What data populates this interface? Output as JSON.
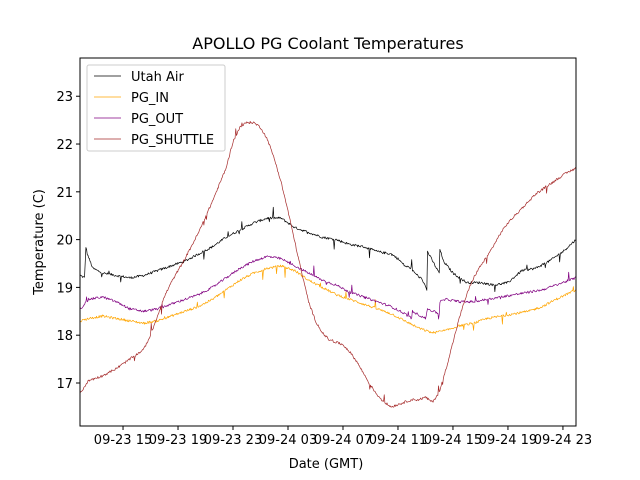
{
  "chart_data": {
    "type": "line",
    "title": "APOLLO PG Coolant Temperatures",
    "xlabel": "Date (GMT)",
    "ylabel": "Temperature (C)",
    "x_unit": "hours since 09-23 00:00 GMT",
    "xlim": [
      11.87,
      47.95
    ],
    "ylim": [
      16.1,
      23.8
    ],
    "grid": false,
    "legend_position": "top-left",
    "xticks": [
      {
        "value": 15,
        "label": "09-23 15"
      },
      {
        "value": 19,
        "label": "09-23 19"
      },
      {
        "value": 23,
        "label": "09-23 23"
      },
      {
        "value": 27,
        "label": "09-24 03"
      },
      {
        "value": 31,
        "label": "09-24 07"
      },
      {
        "value": 35,
        "label": "09-24 11"
      },
      {
        "value": 39,
        "label": "09-24 15"
      },
      {
        "value": 43,
        "label": "09-24 19"
      },
      {
        "value": 47,
        "label": "09-24 23"
      }
    ],
    "yticks": [
      {
        "value": 17,
        "label": "17"
      },
      {
        "value": 18,
        "label": "18"
      },
      {
        "value": 19,
        "label": "19"
      },
      {
        "value": 20,
        "label": "20"
      },
      {
        "value": 21,
        "label": "21"
      },
      {
        "value": 22,
        "label": "22"
      },
      {
        "value": 23,
        "label": "23"
      }
    ],
    "series": [
      {
        "name": "Utah Air",
        "color": "#000000",
        "x": [
          11.9,
          12.2,
          12.3,
          12.4,
          12.8,
          13.5,
          14.5,
          15.5,
          16.5,
          17.5,
          18.5,
          19.5,
          20.5,
          21.5,
          22.5,
          23.5,
          24.5,
          25.5,
          26.5,
          27.5,
          28.5,
          29.5,
          30.5,
          31.5,
          32.5,
          33.5,
          34.5,
          35.0,
          35.5,
          36.0,
          36.05,
          36.8,
          37.1,
          37.15,
          37.8,
          38.0,
          38.05,
          38.3,
          39.0,
          40.0,
          41.0,
          42.0,
          43.0,
          44.0,
          45.0,
          46.0,
          47.0,
          47.95
        ],
        "values": [
          19.25,
          19.2,
          19.85,
          19.7,
          19.4,
          19.3,
          19.25,
          19.2,
          19.25,
          19.35,
          19.45,
          19.55,
          19.7,
          19.85,
          20.05,
          20.2,
          20.35,
          20.45,
          20.45,
          20.25,
          20.15,
          20.05,
          20.0,
          19.9,
          19.85,
          19.75,
          19.7,
          19.6,
          19.45,
          19.4,
          19.35,
          19.15,
          18.95,
          19.75,
          19.4,
          19.3,
          19.8,
          19.55,
          19.3,
          19.1,
          19.1,
          19.05,
          19.1,
          19.35,
          19.4,
          19.55,
          19.75,
          20.0
        ]
      },
      {
        "name": "PG_IN",
        "color": "#FFA500",
        "x": [
          11.9,
          12.5,
          13.5,
          14.5,
          15.5,
          16.5,
          17.5,
          18.5,
          19.5,
          20.5,
          21.5,
          22.5,
          23.5,
          24.5,
          25.5,
          26.5,
          27.5,
          28.5,
          29.5,
          30.5,
          31.5,
          32.5,
          33.5,
          34.5,
          35.5,
          36.5,
          37.5,
          38.5,
          39.5,
          40.5,
          41.5,
          42.5,
          43.5,
          44.5,
          45.5,
          46.5,
          47.95
        ],
        "values": [
          18.3,
          18.35,
          18.4,
          18.35,
          18.3,
          18.25,
          18.3,
          18.4,
          18.5,
          18.6,
          18.75,
          18.95,
          19.15,
          19.3,
          19.4,
          19.45,
          19.35,
          19.15,
          19.0,
          18.85,
          18.75,
          18.65,
          18.55,
          18.45,
          18.3,
          18.15,
          18.05,
          18.1,
          18.2,
          18.25,
          18.35,
          18.4,
          18.45,
          18.5,
          18.6,
          18.75,
          18.95
        ]
      },
      {
        "name": "PG_OUT",
        "color": "#800080",
        "x": [
          11.9,
          12.5,
          13.5,
          14.5,
          15.5,
          16.5,
          17.5,
          18.5,
          19.5,
          20.5,
          21.5,
          22.5,
          23.5,
          24.5,
          25.5,
          26.5,
          27.5,
          28.5,
          29.5,
          30.5,
          31.5,
          32.5,
          33.5,
          34.5,
          35.5,
          36.0,
          36.05,
          37.0,
          37.15,
          38.0,
          38.05,
          38.5,
          39.5,
          40.5,
          41.5,
          42.5,
          43.5,
          44.5,
          45.5,
          46.5,
          47.95
        ],
        "values": [
          18.55,
          18.75,
          18.8,
          18.7,
          18.55,
          18.5,
          18.55,
          18.65,
          18.75,
          18.85,
          19.0,
          19.2,
          19.4,
          19.55,
          19.65,
          19.6,
          19.45,
          19.3,
          19.15,
          19.05,
          18.9,
          18.8,
          18.7,
          18.6,
          18.45,
          18.35,
          18.5,
          18.35,
          18.55,
          18.45,
          18.7,
          18.75,
          18.7,
          18.7,
          18.75,
          18.8,
          18.85,
          18.9,
          18.95,
          19.05,
          19.2
        ]
      },
      {
        "name": "PG_SHUTTLE",
        "color": "#A52A2A",
        "x": [
          11.9,
          12.5,
          13.5,
          14.5,
          15.5,
          16.5,
          17.0,
          17.5,
          18.0,
          18.5,
          19.5,
          20.5,
          21.5,
          22.5,
          23.0,
          23.5,
          24.0,
          24.5,
          25.0,
          25.5,
          26.0,
          26.5,
          27.0,
          27.5,
          28.0,
          28.5,
          29.0,
          29.5,
          30.0,
          30.5,
          31.0,
          31.5,
          32.0,
          32.5,
          33.0,
          33.5,
          34.0,
          34.5,
          35.0,
          35.5,
          36.0,
          36.5,
          37.0,
          37.5,
          38.0,
          38.5,
          39.0,
          39.5,
          40.0,
          40.5,
          41.0,
          41.5,
          42.0,
          42.5,
          43.0,
          44.0,
          45.0,
          46.0,
          47.0,
          47.95
        ],
        "values": [
          16.8,
          17.05,
          17.15,
          17.3,
          17.5,
          17.7,
          18.0,
          18.4,
          18.8,
          19.1,
          19.6,
          20.15,
          20.8,
          21.5,
          22.05,
          22.35,
          22.45,
          22.45,
          22.35,
          22.1,
          21.7,
          21.2,
          20.6,
          19.95,
          19.3,
          18.7,
          18.3,
          18.05,
          17.9,
          17.85,
          17.8,
          17.65,
          17.45,
          17.2,
          16.95,
          16.75,
          16.6,
          16.5,
          16.55,
          16.6,
          16.65,
          16.65,
          16.7,
          16.6,
          16.8,
          17.3,
          17.85,
          18.4,
          18.85,
          19.2,
          19.45,
          19.65,
          19.9,
          20.15,
          20.35,
          20.65,
          20.95,
          21.15,
          21.35,
          21.5
        ]
      }
    ]
  }
}
